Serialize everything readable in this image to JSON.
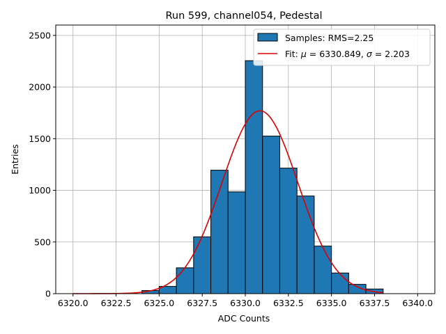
{
  "chart_data": {
    "type": "bar",
    "title": "Run 599, channel054, Pedestal",
    "xlabel": "ADC Counts",
    "ylabel": "Entries",
    "xlim": [
      6319.0,
      6341.0
    ],
    "ylim": [
      0,
      2600
    ],
    "xticks": [
      6320.0,
      6322.5,
      6325.0,
      6327.5,
      6330.0,
      6332.5,
      6335.0,
      6337.5,
      6340.0
    ],
    "xtick_labels": [
      "6320.0",
      "6322.5",
      "6325.0",
      "6327.5",
      "6330.0",
      "6332.5",
      "6335.0",
      "6337.5",
      "6340.0"
    ],
    "yticks": [
      0,
      500,
      1000,
      1500,
      2000,
      2500
    ],
    "ytick_labels": [
      "0",
      "500",
      "1000",
      "1500",
      "2000",
      "2500"
    ],
    "grid": true,
    "legend_position": "top-right",
    "histogram": {
      "name": "Samples: RMS=2.25",
      "color": "#1f77b4",
      "edgecolor": "#000000",
      "bin_edges": [
        6324,
        6325,
        6326,
        6327,
        6328,
        6329,
        6330,
        6331,
        6332,
        6333,
        6334,
        6335,
        6336,
        6337,
        6338
      ],
      "counts": [
        30,
        70,
        250,
        550,
        1195,
        985,
        2255,
        1525,
        1215,
        945,
        460,
        200,
        90,
        45
      ]
    },
    "fit": {
      "name": "Fit: μ = 6330.849, σ = 2.203",
      "color": "#dd0000",
      "mu": 6330.849,
      "sigma": 2.203,
      "amplitude": 1770,
      "x_range": [
        6320.0,
        6338.0
      ]
    }
  }
}
